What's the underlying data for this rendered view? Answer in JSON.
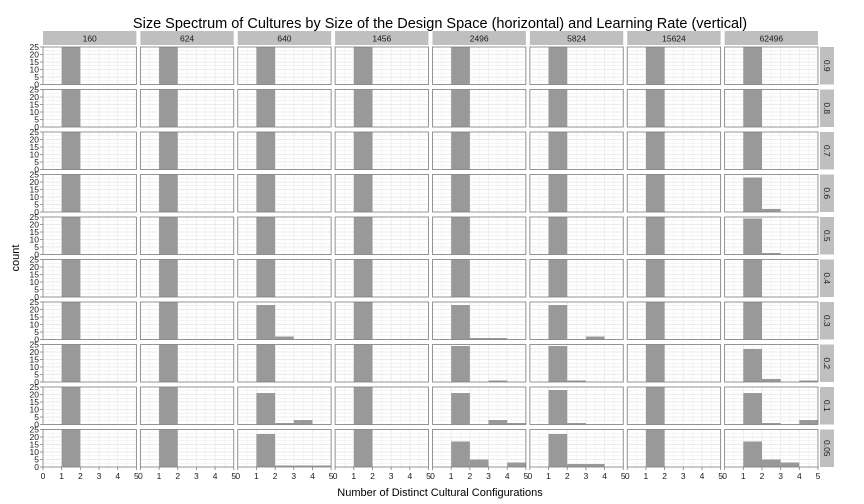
{
  "chart_data": {
    "type": "bar",
    "title": "Size Spectrum of Cultures by Size of the Design Space (horizontal) and Learning Rate (vertical)",
    "xlabel": "Number of Distinct Cultural Configurations",
    "ylabel": "count",
    "xlim": [
      0,
      5
    ],
    "ylim": [
      0,
      25
    ],
    "x_ticks": [
      0,
      1,
      2,
      3,
      4,
      5
    ],
    "y_ticks": [
      0,
      5,
      10,
      15,
      20,
      25
    ],
    "columns": [
      "160",
      "624",
      "640",
      "1456",
      "2496",
      "5824",
      "15624",
      "62496"
    ],
    "rows": [
      "0.9",
      "0.8",
      "0.7",
      "0.6",
      "0.5",
      "0.4",
      "0.3",
      "0.2",
      "0.1",
      "0.05"
    ],
    "bins": [
      [
        1,
        2
      ],
      [
        2,
        3
      ],
      [
        3,
        4
      ],
      [
        4,
        5
      ]
    ],
    "bar_color": "#999999",
    "panel_background": "#ffffff",
    "grid_color": "#ebebeb",
    "strip_color": "#bfbfbf",
    "grid": true,
    "values": [
      [
        [
          25,
          0,
          0,
          0
        ],
        [
          25,
          0,
          0,
          0
        ],
        [
          25,
          0,
          0,
          0
        ],
        [
          25,
          0,
          0,
          0
        ],
        [
          25,
          0,
          0,
          0
        ],
        [
          25,
          0,
          0,
          0
        ],
        [
          25,
          0,
          0,
          0
        ],
        [
          25,
          0,
          0,
          0
        ]
      ],
      [
        [
          25,
          0,
          0,
          0
        ],
        [
          25,
          0,
          0,
          0
        ],
        [
          25,
          0,
          0,
          0
        ],
        [
          25,
          0,
          0,
          0
        ],
        [
          25,
          0,
          0,
          0
        ],
        [
          25,
          0,
          0,
          0
        ],
        [
          25,
          0,
          0,
          0
        ],
        [
          25,
          0,
          0,
          0
        ]
      ],
      [
        [
          25,
          0,
          0,
          0
        ],
        [
          25,
          0,
          0,
          0
        ],
        [
          25,
          0,
          0,
          0
        ],
        [
          25,
          0,
          0,
          0
        ],
        [
          25,
          0,
          0,
          0
        ],
        [
          25,
          0,
          0,
          0
        ],
        [
          25,
          0,
          0,
          0
        ],
        [
          25,
          0,
          0,
          0
        ]
      ],
      [
        [
          25,
          0,
          0,
          0
        ],
        [
          25,
          0,
          0,
          0
        ],
        [
          25,
          0,
          0,
          0
        ],
        [
          25,
          0,
          0,
          0
        ],
        [
          25,
          0,
          0,
          0
        ],
        [
          25,
          0,
          0,
          0
        ],
        [
          25,
          0,
          0,
          0
        ],
        [
          23,
          2,
          0,
          0
        ]
      ],
      [
        [
          25,
          0,
          0,
          0
        ],
        [
          25,
          0,
          0,
          0
        ],
        [
          25,
          0,
          0,
          0
        ],
        [
          25,
          0,
          0,
          0
        ],
        [
          25,
          0,
          0,
          0
        ],
        [
          25,
          0,
          0,
          0
        ],
        [
          25,
          0,
          0,
          0
        ],
        [
          24,
          1,
          0,
          0
        ]
      ],
      [
        [
          25,
          0,
          0,
          0
        ],
        [
          25,
          0,
          0,
          0
        ],
        [
          25,
          0,
          0,
          0
        ],
        [
          25,
          0,
          0,
          0
        ],
        [
          25,
          0,
          0,
          0
        ],
        [
          25,
          0,
          0,
          0
        ],
        [
          25,
          0,
          0,
          0
        ],
        [
          25,
          0,
          0,
          0
        ]
      ],
      [
        [
          25,
          0,
          0,
          0
        ],
        [
          25,
          0,
          0,
          0
        ],
        [
          23,
          2,
          0,
          0
        ],
        [
          25,
          0,
          0,
          0
        ],
        [
          23,
          1,
          1,
          0
        ],
        [
          23,
          0,
          2,
          0
        ],
        [
          25,
          0,
          0,
          0
        ],
        [
          25,
          0,
          0,
          0
        ]
      ],
      [
        [
          25,
          0,
          0,
          0
        ],
        [
          25,
          0,
          0,
          0
        ],
        [
          25,
          0,
          0,
          0
        ],
        [
          25,
          0,
          0,
          0
        ],
        [
          24,
          0,
          1,
          0
        ],
        [
          24,
          1,
          0,
          0
        ],
        [
          25,
          0,
          0,
          0
        ],
        [
          22,
          2,
          0,
          1
        ]
      ],
      [
        [
          25,
          0,
          0,
          0
        ],
        [
          25,
          0,
          0,
          0
        ],
        [
          21,
          1,
          3,
          0
        ],
        [
          25,
          0,
          0,
          0
        ],
        [
          21,
          0,
          3,
          1
        ],
        [
          23,
          1,
          0,
          0
        ],
        [
          25,
          0,
          0,
          0
        ],
        [
          21,
          1,
          0,
          3
        ]
      ],
      [
        [
          25,
          0,
          0,
          0
        ],
        [
          25,
          0,
          0,
          0
        ],
        [
          22,
          1,
          1,
          1
        ],
        [
          25,
          0,
          0,
          0
        ],
        [
          17,
          5,
          0,
          3
        ],
        [
          22,
          2,
          2,
          0
        ],
        [
          25,
          0,
          0,
          0
        ],
        [
          17,
          5,
          3,
          0
        ]
      ]
    ]
  }
}
